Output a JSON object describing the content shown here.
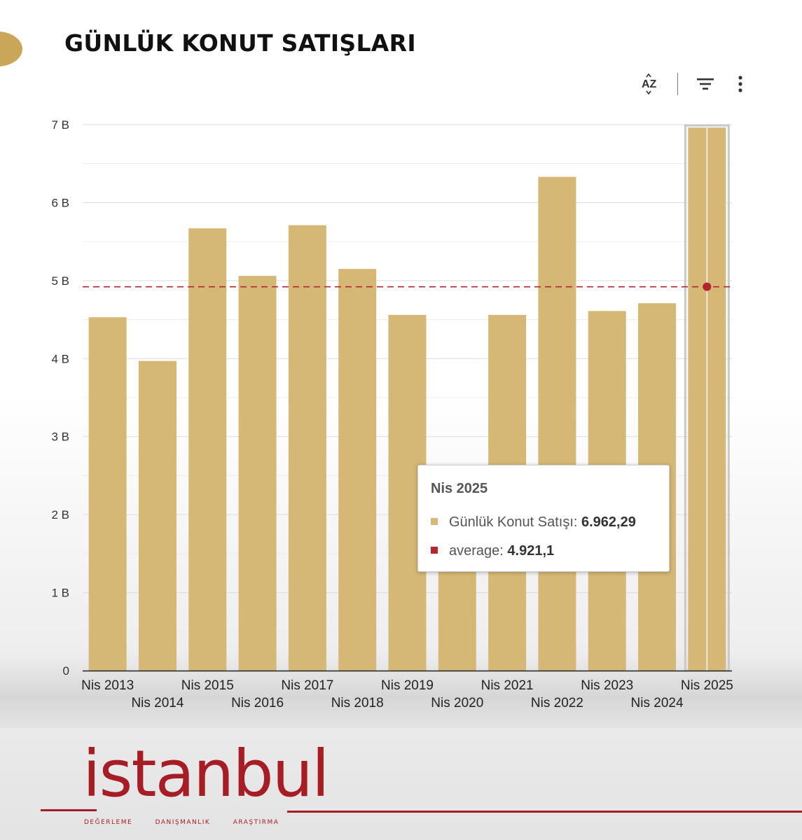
{
  "title": "GÜNLÜK KONUT SATIŞLARI",
  "toolbar": {
    "sort_label": "AZ",
    "filter_icon": "filter-icon",
    "more_icon": "more-vertical-icon"
  },
  "colors": {
    "bar": "#d6b876",
    "average_line": "#b3262d",
    "highlight": "#c8c8c8"
  },
  "chart_data": {
    "type": "bar",
    "title": "GÜNLÜK KONUT SATIŞLARI",
    "categories": [
      "Nis 2013",
      "Nis 2014",
      "Nis 2015",
      "Nis 2016",
      "Nis 2017",
      "Nis 2018",
      "Nis 2019",
      "Nis 2020",
      "Nis 2021",
      "Nis 2022",
      "Nis 2023",
      "Nis 2024",
      "Nis 2025"
    ],
    "series": [
      {
        "name": "Günlük Konut Satışı",
        "values": [
          4530,
          3970,
          5670,
          5060,
          5710,
          5150,
          4560,
          1960,
          4560,
          6330,
          4610,
          4710,
          6962.29
        ]
      }
    ],
    "reference_line": {
      "name": "average",
      "value": 4921.1
    },
    "y_ticks": [
      {
        "value": 0,
        "label": "0"
      },
      {
        "value": 1000,
        "label": "1 B"
      },
      {
        "value": 2000,
        "label": "2 B"
      },
      {
        "value": 3000,
        "label": "3 B"
      },
      {
        "value": 4000,
        "label": "4 B"
      },
      {
        "value": 5000,
        "label": "5 B"
      },
      {
        "value": 6000,
        "label": "6 B"
      },
      {
        "value": 7000,
        "label": "7 B"
      }
    ],
    "ylim": [
      0,
      7000
    ],
    "grid": true,
    "highlighted_category": "Nis 2025"
  },
  "tooltip": {
    "title": "Nis 2025",
    "series_label": "Günlük Konut Satışı: ",
    "series_value": "6.962,29",
    "average_label": "average: ",
    "average_value": "4.921,1"
  },
  "logo": {
    "word": "istanbul",
    "tagline": [
      "DEĞERLEME",
      "DANIŞMANLIK",
      "ARAŞTIRMA"
    ]
  }
}
